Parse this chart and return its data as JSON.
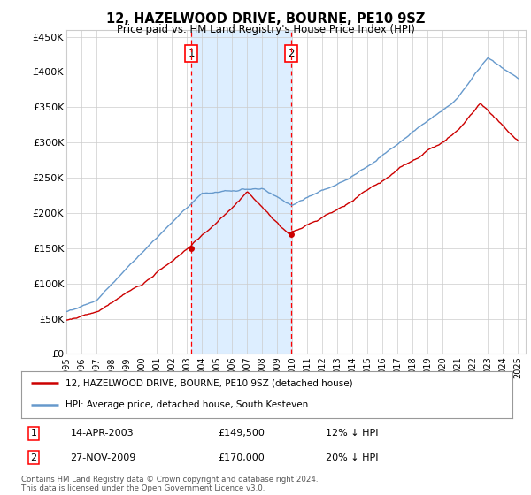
{
  "title": "12, HAZELWOOD DRIVE, BOURNE, PE10 9SZ",
  "subtitle": "Price paid vs. HM Land Registry's House Price Index (HPI)",
  "ylabel_ticks": [
    "£0",
    "£50K",
    "£100K",
    "£150K",
    "£200K",
    "£250K",
    "£300K",
    "£350K",
    "£400K",
    "£450K"
  ],
  "yvalues": [
    0,
    50000,
    100000,
    150000,
    200000,
    250000,
    300000,
    350000,
    400000,
    450000
  ],
  "ylim": [
    0,
    460000
  ],
  "xlim_start": 1995,
  "xlim_end": 2025.5,
  "xticks": [
    1995,
    1996,
    1997,
    1998,
    1999,
    2000,
    2001,
    2002,
    2003,
    2004,
    2005,
    2006,
    2007,
    2008,
    2009,
    2010,
    2011,
    2012,
    2013,
    2014,
    2015,
    2016,
    2017,
    2018,
    2019,
    2020,
    2021,
    2022,
    2023,
    2024,
    2025
  ],
  "purchase1_year": 2003.29,
  "purchase1_price": 149500,
  "purchase1_label": "1",
  "purchase1_date": "14-APR-2003",
  "purchase1_hpi": "12% ↓ HPI",
  "purchase2_year": 2009.92,
  "purchase2_price": 170000,
  "purchase2_label": "2",
  "purchase2_date": "27-NOV-2009",
  "purchase2_hpi": "20% ↓ HPI",
  "legend_property": "12, HAZELWOOD DRIVE, BOURNE, PE10 9SZ (detached house)",
  "legend_hpi": "HPI: Average price, detached house, South Kesteven",
  "red_color": "#cc0000",
  "blue_color": "#6699cc",
  "shade_color": "#ddeeff",
  "footnote": "Contains HM Land Registry data © Crown copyright and database right 2024.\nThis data is licensed under the Open Government Licence v3.0.",
  "background_color": "#ffffff",
  "grid_color": "#cccccc"
}
